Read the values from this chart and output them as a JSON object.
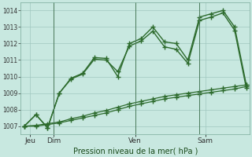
{
  "xlabel": "Pression niveau de la mer( hPa )",
  "background_color": "#c8e8e0",
  "plot_bg_color": "#c8e8e0",
  "grid_color": "#a0c8c0",
  "ylim": [
    1006.5,
    1014.5
  ],
  "yticks": [
    1007,
    1008,
    1009,
    1010,
    1011,
    1012,
    1013,
    1014
  ],
  "xtick_labels": [
    "Jeu",
    "Dim",
    "Ven",
    "Sam"
  ],
  "line_color": "#2d6b2d",
  "line_color2": "#3a7a3a",
  "line1_x": [
    0,
    1,
    2,
    3,
    4,
    5,
    6,
    7,
    8,
    9,
    10,
    11,
    12,
    13,
    14,
    15,
    16,
    17,
    18,
    19
  ],
  "line1_y": [
    1007.0,
    1007.7,
    1006.9,
    1009.0,
    1009.9,
    1010.2,
    1011.15,
    1011.1,
    1010.0,
    1012.0,
    1012.3,
    1013.0,
    1012.1,
    1012.0,
    1011.0,
    1013.6,
    1013.8,
    1014.0,
    1013.0,
    1009.5
  ],
  "line2_x": [
    0,
    1,
    2,
    3,
    4,
    5,
    6,
    7,
    8,
    9,
    10,
    11,
    12,
    13,
    14,
    15,
    16,
    17,
    18,
    19
  ],
  "line2_y": [
    1007.0,
    1007.05,
    1007.15,
    1007.25,
    1007.45,
    1007.6,
    1007.8,
    1007.95,
    1008.15,
    1008.35,
    1008.5,
    1008.65,
    1008.8,
    1008.9,
    1009.0,
    1009.1,
    1009.2,
    1009.3,
    1009.4,
    1009.5
  ],
  "line3_x": [
    0,
    1,
    2,
    3,
    4,
    5,
    6,
    7,
    8,
    9,
    10,
    11,
    12,
    13,
    14,
    15,
    16,
    17,
    18,
    19
  ],
  "line3_y": [
    1007.0,
    1007.0,
    1007.1,
    1007.2,
    1007.35,
    1007.5,
    1007.65,
    1007.8,
    1008.0,
    1008.2,
    1008.35,
    1008.5,
    1008.65,
    1008.75,
    1008.85,
    1008.95,
    1009.05,
    1009.15,
    1009.25,
    1009.4
  ],
  "line4_x": [
    0,
    1,
    2,
    3,
    4,
    5,
    6,
    7,
    8,
    9,
    10,
    11,
    12,
    13,
    14,
    15,
    16,
    17,
    18,
    19
  ],
  "line4_y": [
    1007.0,
    1007.7,
    1006.9,
    1009.0,
    1009.85,
    1010.15,
    1011.05,
    1011.0,
    1010.3,
    1011.85,
    1012.15,
    1012.75,
    1011.8,
    1011.65,
    1010.8,
    1013.4,
    1013.6,
    1013.85,
    1012.8,
    1009.3
  ],
  "vline_x": [
    2.5,
    9.5,
    15.0
  ],
  "xtick_x": [
    0.5,
    2.5,
    9.5,
    15.5
  ],
  "n_points": 20,
  "marker": "+",
  "markersize": 5,
  "linewidth": 1.0,
  "linewidth_slow": 0.9
}
